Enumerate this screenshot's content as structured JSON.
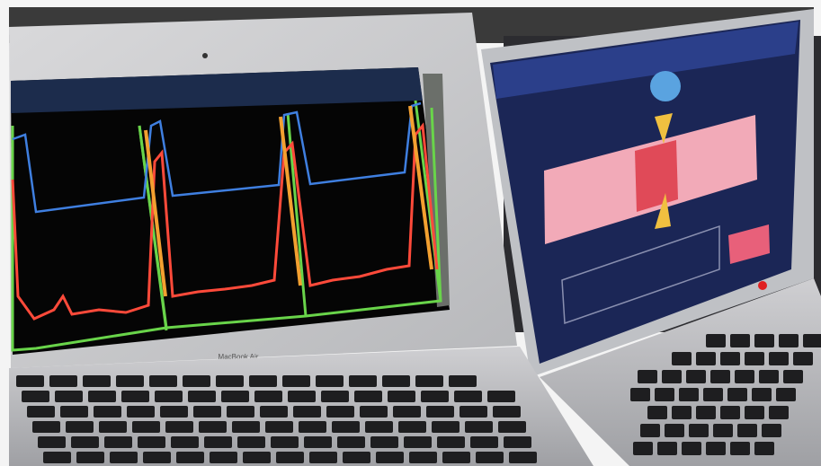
{
  "image": {
    "laptop_label": "MacBook Air"
  }
}
